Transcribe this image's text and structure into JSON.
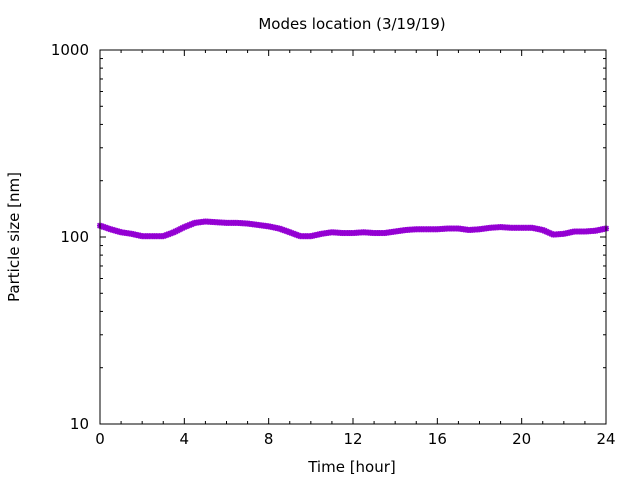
{
  "chart_data": {
    "type": "scatter",
    "title": "Modes location (3/19/19)",
    "xlabel": "Time [hour]",
    "ylabel": "Particle size [nm]",
    "xlim": [
      0,
      24
    ],
    "ylim": [
      10,
      1000
    ],
    "yscale": "log",
    "grid": false,
    "x_ticks": [
      0,
      4,
      8,
      12,
      16,
      20,
      24
    ],
    "x_tick_labels": [
      "0",
      "4",
      "8",
      "12",
      "16",
      "20",
      "24"
    ],
    "y_ticks": [
      10,
      100,
      1000
    ],
    "y_tick_labels": [
      "10",
      "100",
      "1000"
    ],
    "marker_color": "#9400d3",
    "series": [
      {
        "x": [
          0.0,
          0.5,
          1.0,
          1.5,
          2.0,
          2.5,
          3.0,
          3.5,
          4.0,
          4.5,
          5.0,
          5.5,
          6.0,
          6.5,
          7.0,
          7.5,
          8.0,
          8.5,
          9.0,
          9.5,
          10.0,
          10.5,
          11.0,
          11.5,
          12.0,
          12.5,
          13.0,
          13.5,
          14.0,
          14.5,
          15.0,
          15.5,
          16.0,
          16.5,
          17.0,
          17.5,
          18.0,
          18.5,
          19.0,
          19.5,
          20.0,
          20.5,
          21.0,
          21.5,
          22.0,
          22.5,
          23.0,
          23.5,
          24.0
        ],
        "y": [
          115,
          110,
          106,
          104,
          101,
          101,
          101,
          106,
          113,
          119,
          121,
          120,
          119,
          119,
          118,
          116,
          114,
          111,
          106,
          101,
          101,
          104,
          106,
          105,
          105,
          106,
          105,
          105,
          107,
          109,
          110,
          110,
          110,
          111,
          111,
          109,
          110,
          112,
          113,
          112,
          112,
          112,
          109,
          103,
          104,
          107,
          107,
          108,
          111
        ]
      }
    ]
  }
}
